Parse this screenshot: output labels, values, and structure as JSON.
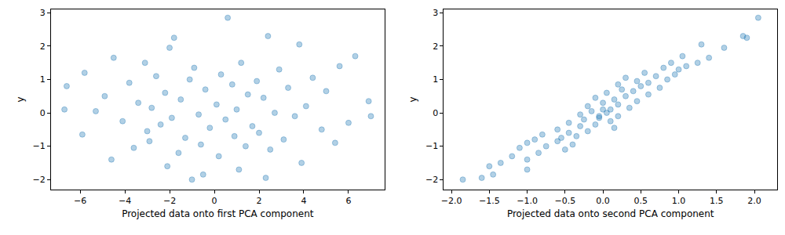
{
  "chart_data": [
    {
      "type": "scatter",
      "xlabel": "Projected data onto first PCA component",
      "ylabel": "y",
      "color": "#1f77b4",
      "marker": "circle",
      "grid": false,
      "xlim": [
        -7.3,
        7.6
      ],
      "ylim": [
        -2.3,
        3.1
      ],
      "xticks": [
        {
          "value": -6,
          "label": "−6"
        },
        {
          "value": -4,
          "label": "−4"
        },
        {
          "value": -2,
          "label": "−2"
        },
        0,
        2,
        4,
        6
      ],
      "yticks": [
        {
          "value": -2,
          "label": "−2"
        },
        {
          "value": -1,
          "label": "−1"
        },
        0,
        1,
        2,
        3
      ],
      "x": [
        0.6,
        2.4,
        -1.8,
        3.8,
        -2.0,
        6.3,
        -4.5,
        1.2,
        -3.1,
        5.6,
        -0.9,
        2.9,
        -5.8,
        0.3,
        -2.6,
        4.4,
        -1.1,
        1.9,
        -3.8,
        0.8,
        -6.6,
        3.3,
        -0.4,
        5.0,
        -2.2,
        1.5,
        -4.9,
        2.2,
        -1.5,
        6.9,
        -3.4,
        0.1,
        4.1,
        -2.8,
        1.0,
        -5.3,
        2.7,
        -0.7,
        3.6,
        -1.9,
        0.5,
        -4.1,
        6.0,
        -2.4,
        1.7,
        -0.2,
        4.8,
        -3.0,
        2.0,
        -5.9,
        0.9,
        -1.3,
        3.1,
        -2.9,
        5.4,
        -0.6,
        1.4,
        -3.6,
        2.5,
        -1.6,
        0.2,
        -4.6,
        3.9,
        -2.1,
        1.1,
        -0.5,
        2.3,
        -1.0,
        -6.7,
        7.0
      ],
      "values": [
        2.85,
        2.3,
        2.25,
        2.05,
        1.95,
        1.7,
        1.65,
        1.5,
        1.5,
        1.4,
        1.35,
        1.3,
        1.2,
        1.15,
        1.1,
        1.05,
        1.0,
        0.95,
        0.9,
        0.85,
        0.8,
        0.75,
        0.7,
        0.65,
        0.6,
        0.55,
        0.5,
        0.45,
        0.4,
        0.35,
        0.3,
        0.25,
        0.2,
        0.15,
        0.1,
        0.05,
        0.0,
        -0.05,
        -0.1,
        -0.15,
        -0.2,
        -0.25,
        -0.3,
        -0.35,
        -0.4,
        -0.45,
        -0.5,
        -0.55,
        -0.6,
        -0.65,
        -0.7,
        -0.75,
        -0.8,
        -0.85,
        -0.9,
        -0.95,
        -1.0,
        -1.05,
        -1.1,
        -1.2,
        -1.3,
        -1.4,
        -1.5,
        -1.6,
        -1.7,
        -1.85,
        -1.95,
        -2.0,
        0.1,
        -0.1
      ]
    },
    {
      "type": "scatter",
      "xlabel": "Projected data onto second PCA component",
      "ylabel": "y",
      "color": "#1f77b4",
      "marker": "circle",
      "grid": false,
      "xlim": [
        -2.1,
        2.3
      ],
      "ylim": [
        -2.3,
        3.1
      ],
      "xticks": [
        {
          "value": -2,
          "label": "−2.0"
        },
        {
          "value": -1.5,
          "label": "−1.5"
        },
        {
          "value": -1,
          "label": "−1.0"
        },
        {
          "value": -0.5,
          "label": "−0.5"
        },
        {
          "value": 0,
          "label": "0.0"
        },
        0.5,
        {
          "value": 1,
          "label": "1.0"
        },
        1.5,
        {
          "value": 2,
          "label": "2.0"
        }
      ],
      "yticks": [
        {
          "value": -2,
          "label": "−2"
        },
        {
          "value": -1,
          "label": "−1"
        },
        0,
        1,
        2,
        3
      ],
      "x": [
        2.05,
        1.85,
        1.9,
        1.3,
        1.6,
        1.05,
        1.4,
        0.9,
        1.25,
        1.1,
        0.8,
        1.0,
        0.55,
        0.95,
        0.7,
        0.3,
        0.85,
        0.45,
        0.6,
        0.2,
        0.5,
        0.75,
        0.25,
        0.4,
        0.05,
        0.6,
        0.3,
        -0.1,
        0.15,
        0.45,
        0.0,
        0.2,
        -0.2,
        0.35,
        0.1,
        -0.15,
        0.05,
        -0.3,
        0.2,
        -0.05,
        -0.25,
        0.1,
        -0.45,
        -0.1,
        -0.3,
        0.15,
        -0.6,
        -0.2,
        -0.45,
        -0.8,
        -0.35,
        -0.55,
        -0.9,
        -0.6,
        -1.0,
        -0.4,
        -0.75,
        -1.1,
        -0.5,
        -0.85,
        -1.2,
        -1.0,
        -1.35,
        -1.5,
        -1.0,
        -1.45,
        -1.6,
        -1.85,
        0.0,
        -0.05
      ],
      "values": [
        2.85,
        2.3,
        2.25,
        2.05,
        1.95,
        1.7,
        1.65,
        1.5,
        1.5,
        1.4,
        1.35,
        1.3,
        1.2,
        1.15,
        1.1,
        1.05,
        1.0,
        0.95,
        0.9,
        0.85,
        0.8,
        0.75,
        0.7,
        0.65,
        0.6,
        0.55,
        0.5,
        0.45,
        0.4,
        0.35,
        0.3,
        0.25,
        0.2,
        0.15,
        0.1,
        0.05,
        0.0,
        -0.05,
        -0.1,
        -0.15,
        -0.2,
        -0.25,
        -0.3,
        -0.35,
        -0.4,
        -0.45,
        -0.5,
        -0.55,
        -0.6,
        -0.65,
        -0.7,
        -0.75,
        -0.8,
        -0.85,
        -0.9,
        -0.95,
        -1.0,
        -1.05,
        -1.1,
        -1.2,
        -1.3,
        -1.4,
        -1.5,
        -1.6,
        -1.7,
        -1.85,
        -1.95,
        -2.0,
        0.1,
        -0.1
      ]
    }
  ]
}
